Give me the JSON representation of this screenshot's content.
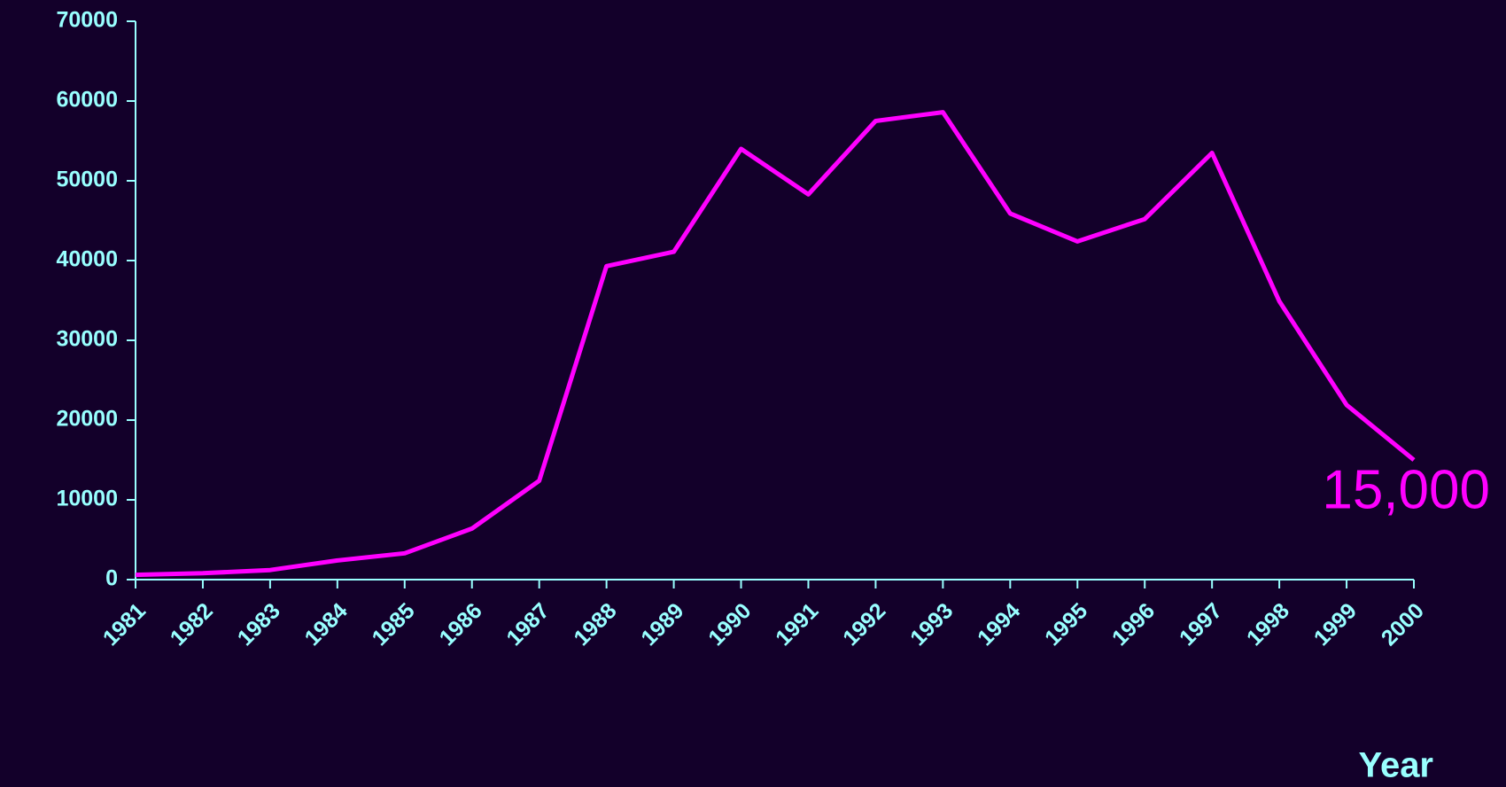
{
  "chart_data": {
    "type": "line",
    "categories": [
      "1981",
      "1982",
      "1983",
      "1984",
      "1985",
      "1986",
      "1987",
      "1988",
      "1989",
      "1990",
      "1991",
      "1992",
      "1993",
      "1994",
      "1995",
      "1996",
      "1997",
      "1998",
      "1999",
      "2000"
    ],
    "series": [
      {
        "color": "#ff00ff",
        "values": [
          600,
          800,
          1200,
          2400,
          3300,
          6400,
          12400,
          39300,
          41100,
          54000,
          48300,
          57500,
          58600,
          45900,
          42400,
          45200,
          53500,
          34900,
          21900,
          15000
        ],
        "value_labels": [
          null,
          null,
          null,
          null,
          null,
          null,
          null,
          null,
          null,
          null,
          null,
          null,
          null,
          null,
          null,
          null,
          null,
          null,
          null,
          "15,000"
        ]
      }
    ],
    "x_label": "Year",
    "ylim": [
      0,
      70000
    ],
    "yticks": [
      0,
      10000,
      20000,
      30000,
      40000,
      50000,
      60000,
      70000
    ],
    "axis_color": "#99ffff"
  }
}
